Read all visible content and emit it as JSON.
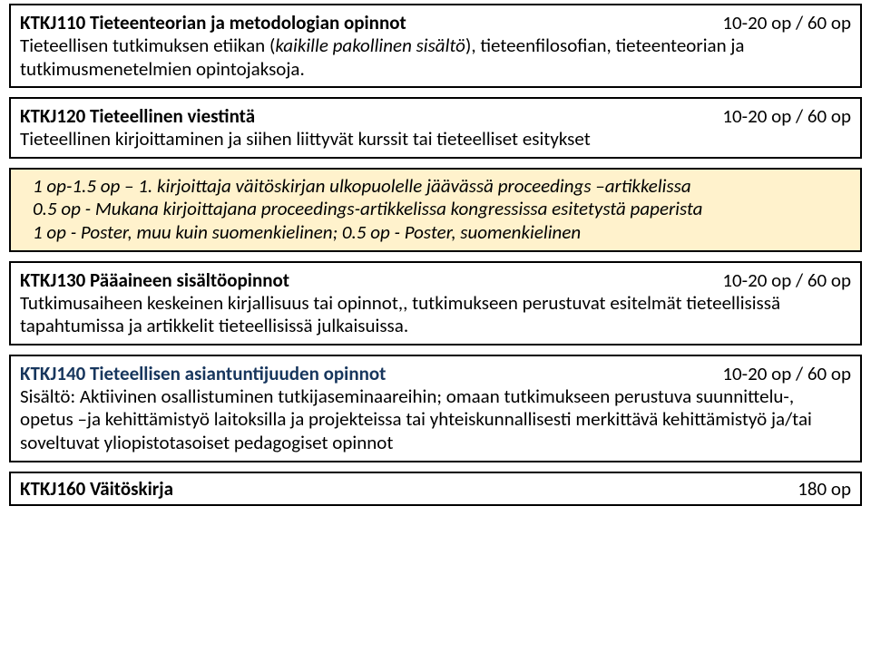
{
  "box1": {
    "title": "KTKJ110 Tieteenteorian ja metodologian opinnot",
    "credits": "10-20 op / 60 op",
    "line1_plain1": "Tieteellisen tutkimuksen etiikan (",
    "line1_italic": "kaikille pakollinen sisältö",
    "line1_plain2": "), tieteenfilosofian, tieteenteorian ja tutkimusmenetelmien opintojaksoja."
  },
  "box2": {
    "title": "KTKJ120 Tieteellinen viestintä",
    "credits": "10-20 op / 60 op",
    "body": "Tieteellinen kirjoittaminen ja siihen liittyvät kurssit tai tieteelliset esitykset"
  },
  "box3": {
    "line1a": "1 op-1.5 op – 1. kirjoittaja väitöskirjan ulkopuolelle jäävässä proceedings –artikkelissa",
    "line2": "0.5 op - Mukana kirjoittajana proceedings-artikkelissa kongressissa esitetystä paperista",
    "line3": "1 op - Poster, muu kuin suomenkielinen; 0.5 op - Poster, suomenkielinen"
  },
  "box4": {
    "title": "KTKJ130 Pääaineen sisältöopinnot",
    "credits": "10-20 op / 60 op",
    "body": "Tutkimusaiheen keskeinen kirjallisuus tai opinnot,, tutkimukseen perustuvat esitelmät tieteellisissä tapahtumissa ja artikkelit tieteellisissä julkaisuissa."
  },
  "box5": {
    "title": "KTKJ140 Tieteellisen asiantuntijuuden opinnot",
    "credits": "10-20 op / 60 op",
    "body": "Sisältö: Aktiivinen osallistuminen tutkijaseminaareihin; omaan tutkimukseen perustuva suunnittelu-, opetus –ja kehittämistyö laitoksilla ja projekteissa tai yhteiskunnallisesti merkittävä kehittämistyö ja/tai soveltuvat yliopistotasoiset pedagogiset opinnot"
  },
  "box6": {
    "title": "KTKJ160 Väitöskirja",
    "credits": "180 op"
  }
}
